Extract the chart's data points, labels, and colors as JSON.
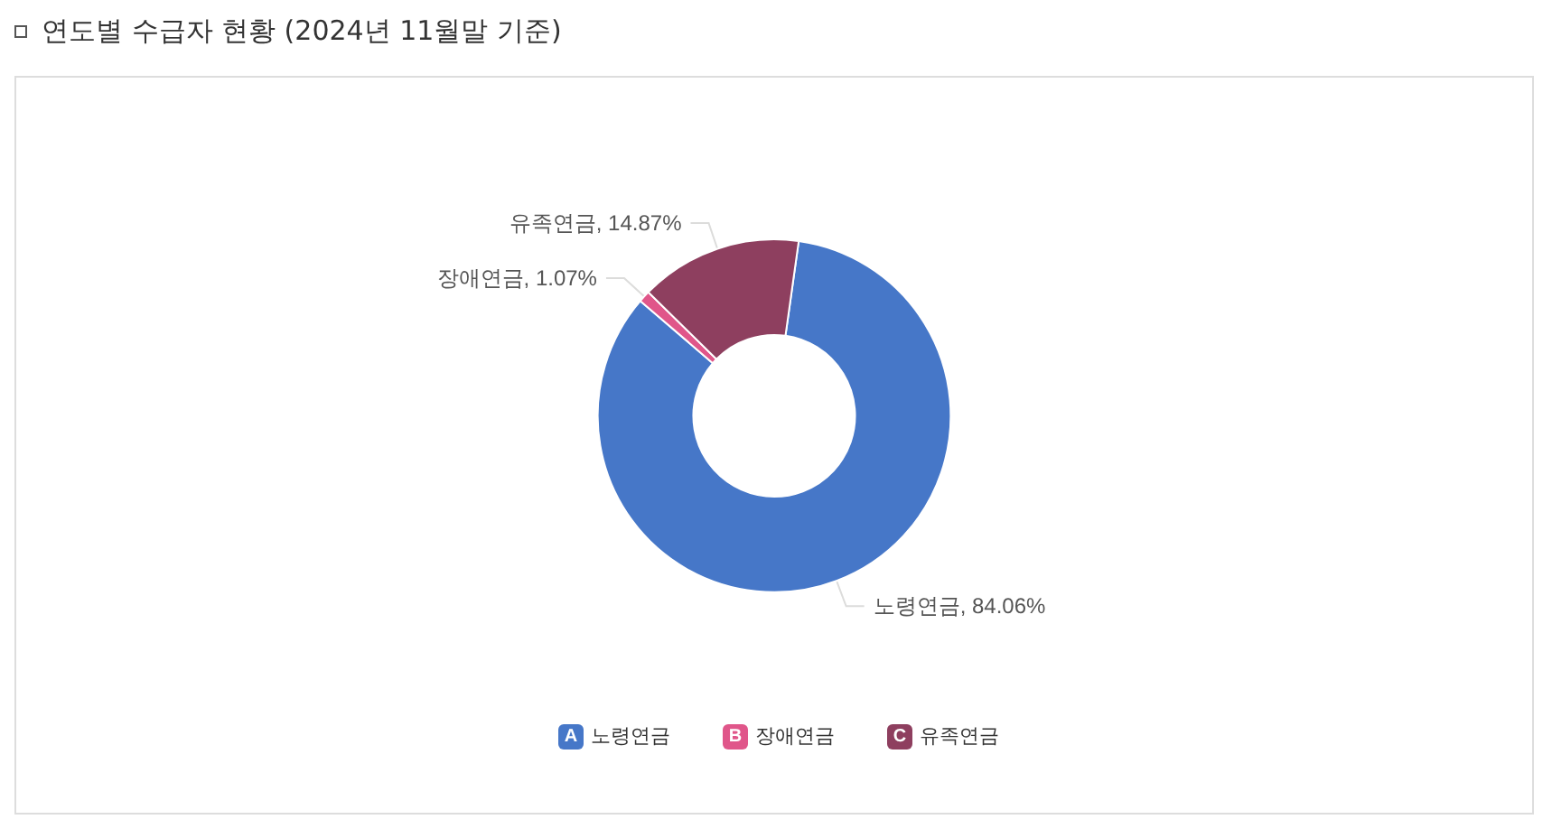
{
  "chart_data": {
    "type": "donut",
    "title": "연도별 수급자 현황 (2024년 11월말 기준)",
    "categories": [
      "노령연금",
      "장애연금",
      "유족연금"
    ],
    "values": [
      84.06,
      1.07,
      14.87
    ],
    "colors": [
      "#4677c8",
      "#e0568a",
      "#8e3f5f"
    ],
    "value_labels": [
      ", 84.06%",
      ", 1.07%",
      ", 14.87%"
    ],
    "legend": "bottom",
    "annotations": [
      "A",
      "B",
      "C"
    ]
  }
}
